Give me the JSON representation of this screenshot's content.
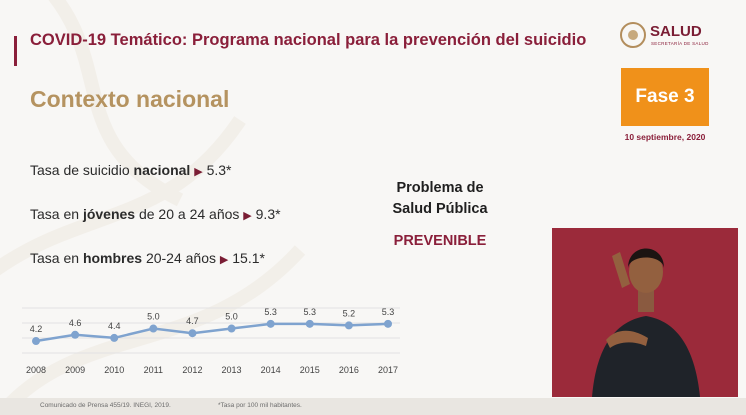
{
  "header": {
    "title": "COVID-19 Temático: Programa nacional para la prevención del suicidio",
    "subtitle": "Contexto nacional"
  },
  "logo": {
    "name": "SALUD",
    "sub": "SECRETARÍA DE SALUD"
  },
  "phase": {
    "label": "Fase 3",
    "date": "10 septiembre, 2020",
    "color": "#f0911a"
  },
  "stats": [
    {
      "pre": "Tasa de suicidio ",
      "bold": "nacional",
      "post": " ",
      "value": "5.3*"
    },
    {
      "pre": "Tasa en ",
      "bold": "jóvenes",
      "post": " de 20 a 24 años ",
      "value": "9.3*"
    },
    {
      "pre": "Tasa en ",
      "bold": "hombres",
      "post": " 20-24 años ",
      "value": "15.1*"
    }
  ],
  "callout": {
    "line1": "Problema de",
    "line2": "Salud Pública",
    "highlight": "PREVENIBLE"
  },
  "chart_data": {
    "type": "line",
    "x": [
      "2008",
      "2009",
      "2010",
      "2011",
      "2012",
      "2013",
      "2014",
      "2015",
      "2016",
      "2017"
    ],
    "values": [
      4.2,
      4.6,
      4.4,
      5.0,
      4.7,
      5.0,
      5.3,
      5.3,
      5.2,
      5.3
    ],
    "data_labels": [
      "4.2",
      "4.6",
      "4.4",
      "5.0",
      "4.7",
      "5.0",
      "5.3",
      "5.3",
      "5.2",
      "5.3"
    ],
    "ylim": [
      3.5,
      5.8
    ],
    "grid": true,
    "color": "#7fa3cf"
  },
  "footer": {
    "source": "Comunicado de Prensa 455/19. INEGI, 2019.",
    "note": "*Tasa por 100 mil habitantes."
  },
  "colors": {
    "primary": "#8a1f3a",
    "gold": "#b59360"
  }
}
